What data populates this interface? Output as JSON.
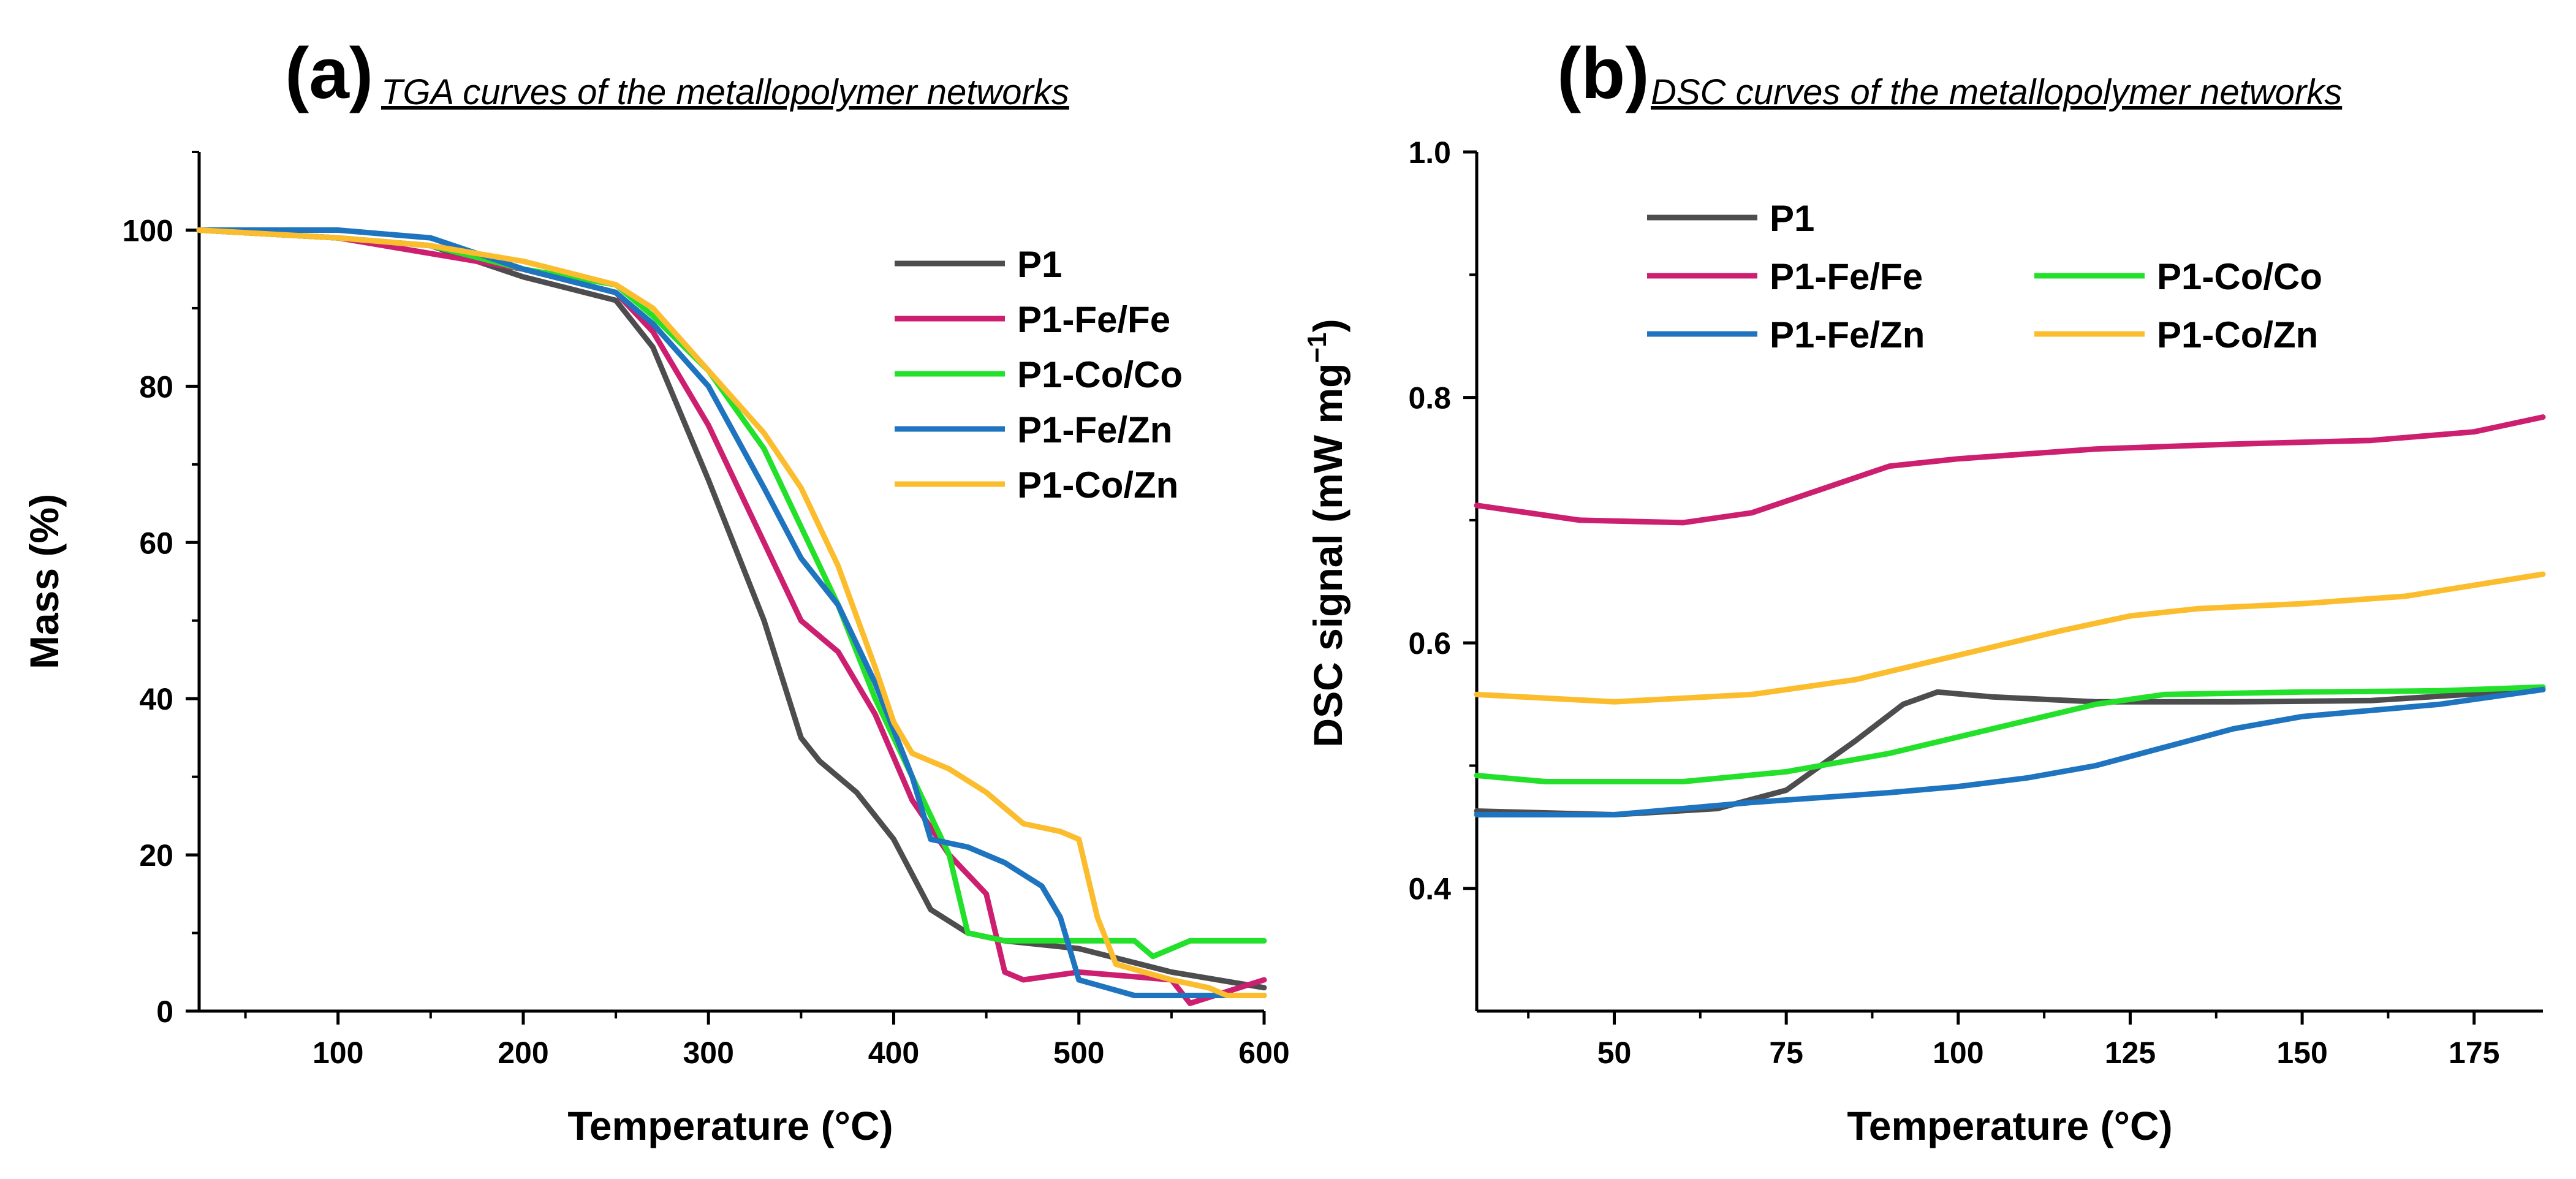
{
  "colors": {
    "P1": "#4d4d4f",
    "P1-Fe/Fe": "#cc1f6f",
    "P1-Co/Co": "#23e02a",
    "P1-Fe/Zn": "#1f74bf",
    "P1-Co/Zn": "#fbbd2d"
  },
  "chart_data": [
    {
      "type": "line",
      "panel": "(a)",
      "title": "TGA curves of the metallopolymer networks",
      "xlabel": "Temperature (°C)",
      "ylabel": "Mass (%)",
      "xlim": [
        25,
        600
      ],
      "ylim": [
        0,
        110
      ],
      "xticks": [
        100,
        200,
        300,
        400,
        500,
        600
      ],
      "xtick_labels": [
        "100",
        "200",
        "300",
        "400",
        "500",
        "600"
      ],
      "yticks": [
        0,
        20,
        40,
        60,
        80,
        100
      ],
      "ytick_labels": [
        "0",
        "20",
        "40",
        "60",
        "80",
        "100"
      ],
      "legend_position": "top-right",
      "legend_order": [
        "P1",
        "P1-Fe/Fe",
        "P1-Co/Co",
        "P1-Fe/Zn",
        "P1-Co/Zn"
      ],
      "series": [
        {
          "name": "P1",
          "x": [
            25,
            100,
            150,
            200,
            250,
            270,
            300,
            330,
            350,
            360,
            380,
            400,
            420,
            440,
            460,
            500,
            550,
            600
          ],
          "y": [
            100,
            99,
            98,
            94,
            91,
            85,
            68,
            50,
            35,
            32,
            28,
            22,
            13,
            10,
            9,
            8,
            5,
            3
          ]
        },
        {
          "name": "P1-Fe/Fe",
          "x": [
            25,
            100,
            150,
            200,
            250,
            270,
            300,
            330,
            350,
            370,
            390,
            410,
            430,
            450,
            460,
            470,
            500,
            550,
            560,
            600
          ],
          "y": [
            100,
            99,
            97,
            95,
            92,
            87,
            75,
            60,
            50,
            46,
            38,
            27,
            20,
            15,
            5,
            4,
            5,
            4,
            1,
            4
          ]
        },
        {
          "name": "P1-Co/Co",
          "x": [
            25,
            100,
            150,
            200,
            250,
            270,
            300,
            330,
            350,
            370,
            390,
            410,
            430,
            440,
            460,
            500,
            530,
            540,
            560,
            600
          ],
          "y": [
            100,
            99,
            98,
            95,
            93,
            89,
            82,
            72,
            62,
            52,
            40,
            30,
            20,
            10,
            9,
            9,
            9,
            7,
            9,
            9
          ]
        },
        {
          "name": "P1-Fe/Zn",
          "x": [
            25,
            100,
            150,
            200,
            250,
            270,
            300,
            330,
            350,
            370,
            390,
            410,
            420,
            440,
            460,
            480,
            490,
            500,
            530,
            540,
            560,
            600
          ],
          "y": [
            100,
            100,
            99,
            95,
            92,
            88,
            80,
            67,
            58,
            52,
            42,
            30,
            22,
            21,
            19,
            16,
            12,
            4,
            2,
            2,
            2,
            2
          ]
        },
        {
          "name": "P1-Co/Zn",
          "x": [
            25,
            100,
            150,
            200,
            250,
            270,
            300,
            330,
            350,
            370,
            390,
            400,
            410,
            430,
            450,
            470,
            490,
            500,
            510,
            520,
            550,
            570,
            580,
            600
          ],
          "y": [
            100,
            99,
            98,
            96,
            93,
            90,
            82,
            74,
            67,
            57,
            44,
            37,
            33,
            31,
            28,
            24,
            23,
            22,
            12,
            6,
            4,
            3,
            2,
            2
          ]
        }
      ]
    },
    {
      "type": "line",
      "panel": "(b)",
      "title": "DSC curves of the metallopolymer networks",
      "xlabel": "Temperature (°C)",
      "ylabel_main": "DSC signal (mW mg",
      "ylabel_sup": "−1",
      "ylabel_close": ")",
      "xlim": [
        30,
        185
      ],
      "ylim": [
        0.3,
        1.0
      ],
      "xticks": [
        50,
        75,
        100,
        125,
        150,
        175
      ],
      "xtick_labels": [
        "50",
        "75",
        "100",
        "125",
        "150",
        "175"
      ],
      "yticks": [
        0.4,
        0.6,
        0.8,
        1.0
      ],
      "ytick_labels": [
        "0.4",
        "0.6",
        "0.8",
        "1.0"
      ],
      "legend_position": "top-left",
      "legend_order": [
        "P1",
        "P1-Fe/Fe",
        "P1-Co/Co",
        "P1-Fe/Zn",
        "P1-Co/Zn"
      ],
      "series": [
        {
          "name": "P1",
          "x": [
            30,
            50,
            65,
            75,
            85,
            92,
            97,
            105,
            120,
            140,
            160,
            185
          ],
          "y": [
            0.463,
            0.46,
            0.465,
            0.48,
            0.52,
            0.55,
            0.56,
            0.556,
            0.552,
            0.552,
            0.553,
            0.562
          ]
        },
        {
          "name": "P1-Fe/Fe",
          "x": [
            30,
            45,
            60,
            70,
            80,
            90,
            100,
            120,
            140,
            160,
            175,
            185
          ],
          "y": [
            0.712,
            0.7,
            0.698,
            0.706,
            0.725,
            0.744,
            0.75,
            0.758,
            0.762,
            0.765,
            0.772,
            0.784
          ]
        },
        {
          "name": "P1-Co/Co",
          "x": [
            30,
            40,
            60,
            75,
            90,
            105,
            120,
            130,
            150,
            170,
            185
          ],
          "y": [
            0.492,
            0.487,
            0.487,
            0.495,
            0.51,
            0.53,
            0.55,
            0.558,
            0.56,
            0.561,
            0.564
          ]
        },
        {
          "name": "P1-Fe/Zn",
          "x": [
            30,
            50,
            70,
            90,
            100,
            110,
            120,
            130,
            140,
            150,
            170,
            185
          ],
          "y": [
            0.46,
            0.46,
            0.47,
            0.478,
            0.483,
            0.49,
            0.5,
            0.515,
            0.53,
            0.54,
            0.55,
            0.562
          ]
        },
        {
          "name": "P1-Co/Zn",
          "x": [
            30,
            50,
            70,
            85,
            100,
            115,
            125,
            135,
            150,
            165,
            185
          ],
          "y": [
            0.558,
            0.552,
            0.558,
            0.57,
            0.59,
            0.61,
            0.622,
            0.628,
            0.632,
            0.638,
            0.656
          ]
        }
      ]
    }
  ]
}
